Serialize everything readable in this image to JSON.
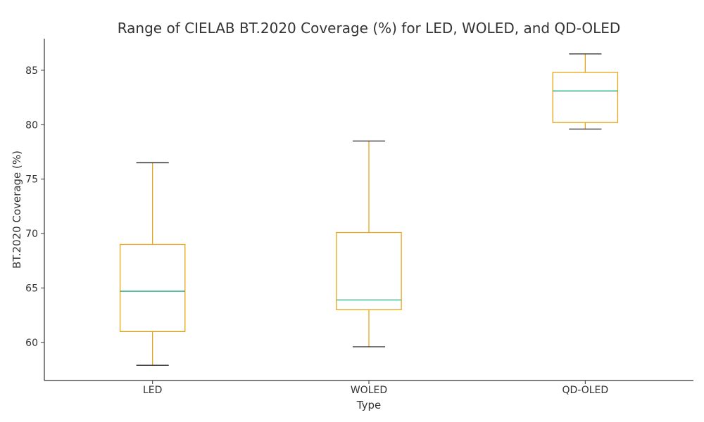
{
  "chart_data": {
    "type": "box",
    "title": "Range of CIELAB BT.2020 Coverage (%) for LED, WOLED, and QD-OLED",
    "xlabel": "Type",
    "ylabel": "BT.2020 Coverage (%)",
    "categories": [
      "LED",
      "WOLED",
      "QD-OLED"
    ],
    "boxes": [
      {
        "whisker_low": 57.9,
        "q1": 61.0,
        "median": 64.7,
        "q3": 69.0,
        "whisker_high": 76.5
      },
      {
        "whisker_low": 59.6,
        "q1": 63.0,
        "median": 63.9,
        "q3": 70.1,
        "whisker_high": 78.5
      },
      {
        "whisker_low": 79.6,
        "q1": 80.2,
        "median": 83.1,
        "q3": 84.8,
        "whisker_high": 86.5
      }
    ],
    "yticks": [
      60,
      65,
      70,
      75,
      80,
      85
    ],
    "ylim": [
      56.5,
      87.9
    ],
    "grid": false,
    "colors": {
      "box": "#E8A317",
      "median": "#1FA87A",
      "cap": "#222222",
      "axis": "#333333"
    }
  }
}
